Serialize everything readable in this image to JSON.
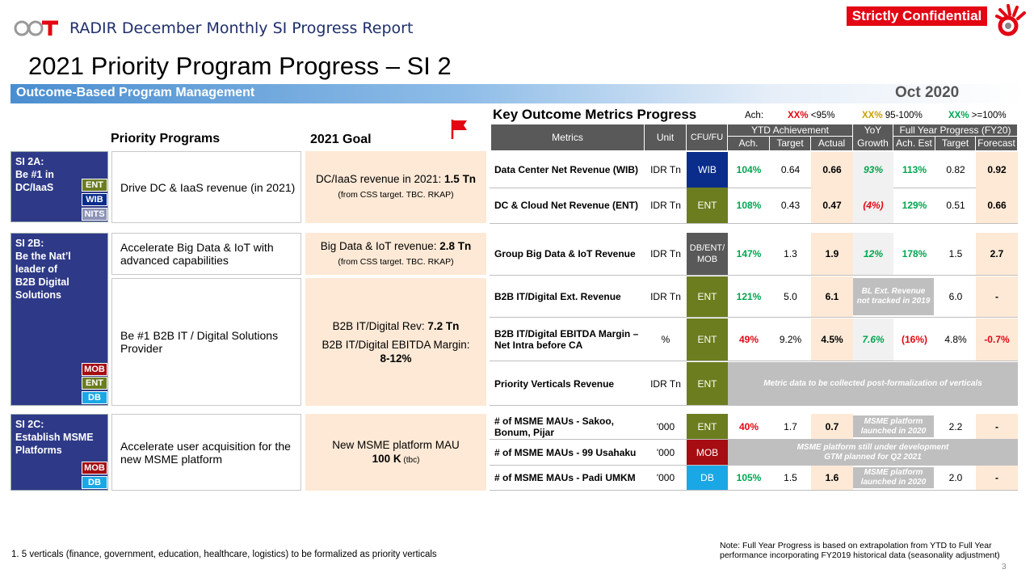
{
  "header": {
    "logo_text": "GCT",
    "report_title": "RADIR December Monthly SI Progress Report",
    "confidential": "Strictly Confidential",
    "main_title": "2021 Priority Program Progress – SI 2",
    "outcome_label": "Outcome-Based Program Management",
    "period": "Oct 2020"
  },
  "left": {
    "priority_programs_head": "Priority Programs",
    "goal_head": "2021 Goal",
    "si_2a": {
      "title": "SI 2A:\nBe #1 in\nDC/IaaS",
      "tags": [
        "ENT",
        "WIB",
        "NITS"
      ]
    },
    "si_2b": {
      "title": "SI 2B:\nBe the Nat’l\nleader of\nB2B Digital\nSolutions",
      "tags": [
        "MOB",
        "ENT",
        "DB"
      ]
    },
    "si_2c": {
      "title": "SI 2C:\nEstablish MSME\nPlatforms",
      "tags": [
        "MOB",
        "DB"
      ]
    },
    "programs": [
      "Drive DC & IaaS revenue (in 2021)",
      "Accelerate Big Data & IoT with advanced capabilities",
      "Be #1 B2B IT / Digital Solutions Provider",
      "Accelerate user acquisition for the new MSME platform"
    ],
    "goals": [
      {
        "pre": "DC/IaaS revenue in 2021: ",
        "bold": "1.5 Tn",
        "note": "(from CSS target. TBC. RKAP)"
      },
      {
        "pre": "Big Data & IoT revenue: ",
        "bold": "2.8 Tn",
        "note": "(from CSS target. TBC. RKAP)"
      },
      {
        "line1_pre": "B2B IT/Digital Rev: ",
        "line1_bold": "7.2 Tn",
        "line2": "B2B IT/Digital EBITDA Margin:",
        "line3": "8-12%"
      },
      {
        "line1": "New MSME platform MAU",
        "line2_bold": "100 K",
        "line2_note": " (tbc)"
      }
    ]
  },
  "metrics": {
    "title": "Key Outcome Metrics Progress",
    "legend": {
      "ach": "Ach:",
      "red": "XX%",
      "red_txt": " <95%",
      "amber": "XX%",
      "amber_txt": " 95-100%",
      "green": "XX%",
      "green_txt": " >=100%"
    },
    "headers": {
      "metrics": "Metrics",
      "unit": "Unit",
      "cfu": "CFU/FU",
      "ytd": "YTD Achievement",
      "yoy": "YoY",
      "fy": "Full Year Progress (FY20)",
      "ach": "Ach.",
      "target": "Target",
      "actual": "Actual",
      "growth": "Growth",
      "ach_est": "Ach. Est",
      "fy_target": "Target",
      "forecast": "Forecast"
    },
    "rows": [
      {
        "name": "Data Center Net Revenue (WIB)",
        "unit": "IDR Tn",
        "cfu": "WIB",
        "ach": "104%",
        "target": "0.64",
        "actual": "0.66",
        "growth": "93%",
        "ach_est": "113%",
        "fy_target": "0.82",
        "forecast": "0.92"
      },
      {
        "name": "DC & Cloud Net Revenue (ENT)",
        "unit": "IDR Tn",
        "cfu": "ENT",
        "ach": "108%",
        "target": "0.43",
        "actual": "0.47",
        "growth": "(4%)",
        "ach_est": "129%",
        "fy_target": "0.51",
        "forecast": "0.66"
      },
      {
        "name": "Group Big Data & IoT Revenue",
        "unit": "IDR Tn",
        "cfu": "DB/ENT/\nMOB",
        "ach": "147%",
        "target": "1.3",
        "actual": "1.9",
        "growth": "12%",
        "ach_est": "178%",
        "fy_target": "1.5",
        "forecast": "2.7"
      },
      {
        "name": "B2B IT/Digital Ext. Revenue",
        "unit": "IDR Tn",
        "cfu": "ENT",
        "ach": "121%",
        "target": "5.0",
        "actual": "6.1",
        "gray": "BL Ext. Revenue\nnot tracked in 2019",
        "fy_target": "6.0",
        "forecast": "-"
      },
      {
        "name": "B2B IT/Digital EBITDA Margin –\nNet Intra before CA",
        "unit": "%",
        "cfu": "ENT",
        "ach": "49%",
        "target": "9.2%",
        "actual": "4.5%",
        "growth": "7.6%",
        "ach_est": "(16%)",
        "fy_target": "4.8%",
        "forecast": "-0.7%"
      },
      {
        "name": "Priority Verticals Revenue",
        "unit": "IDR Tn",
        "cfu": "ENT",
        "gray_wide": "Metric data to be collected post-formalization of verticals"
      },
      {
        "name": "# of MSME MAUs - Sakoo,\nBonum, Pijar",
        "unit": "'000",
        "cfu": "ENT",
        "ach": "40%",
        "target": "1.7",
        "actual": "0.7",
        "gray": "MSME platform\nlaunched in 2020",
        "fy_target": "2.2",
        "forecast": "-"
      },
      {
        "name": "# of MSME MAUs - 99 Usahaku",
        "unit": "'000",
        "cfu": "MOB",
        "gray_wide": "MSME platform still under development\nGTM planned for Q2 2021"
      },
      {
        "name": "# of MSME MAUs - Padi UMKM",
        "unit": "'000",
        "cfu": "DB",
        "ach": "105%",
        "target": "1.5",
        "actual": "1.6",
        "gray": "MSME platform\nlaunched in 2020",
        "fy_target": "2.0",
        "forecast": "-"
      }
    ]
  },
  "footnote": "1. 5 verticals (finance, government, education, healthcare, logistics) to be formalized as priority verticals",
  "note": "Note: Full Year Progress is based on extrapolation from YTD to Full Year performance incorporating FY2019 historical data (seasonality adjustment)",
  "page_number": "3",
  "colors": {
    "navy": "#2e3a87",
    "ent": "#6b7d1f",
    "wib": "#0a2d8c",
    "mob": "#a50d12",
    "db": "#1aa7e6",
    "nits": "#8c93b6",
    "peach": "#fde9d6",
    "red": "#e30613",
    "green": "#00a650",
    "amber": "#c8a000"
  },
  "icons": [
    "flag-icon",
    "company-logo-icon"
  ]
}
